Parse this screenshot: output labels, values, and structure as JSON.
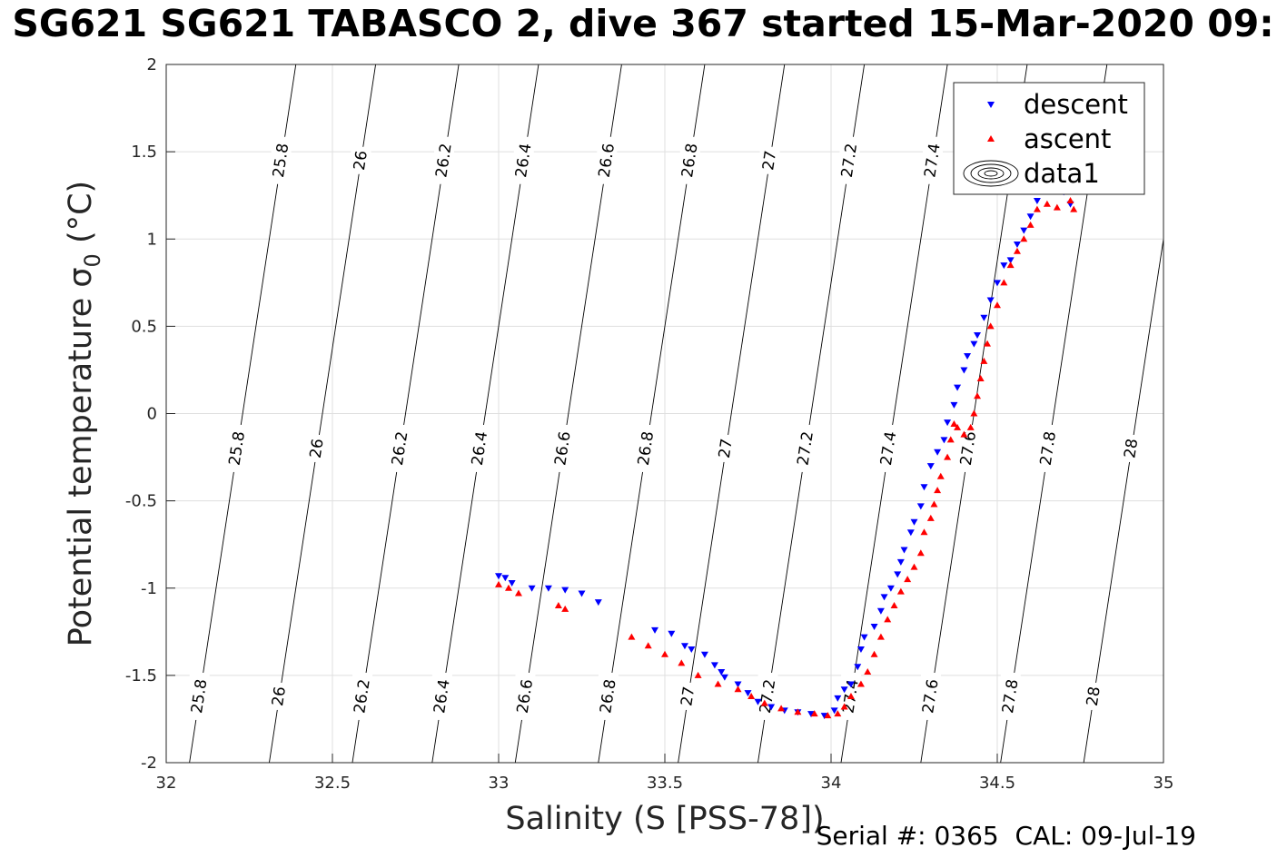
{
  "title": "SG621 SG621 TABASCO 2, dive 367 started 15-Mar-2020 09:",
  "footer": "Serial #: 0365  CAL: 09-Jul-19",
  "colors": {
    "descent": "#0000ff",
    "ascent": "#ff0000",
    "grid": "#dfdfdf",
    "contour": "#000000"
  },
  "chart_data": {
    "type": "scatter",
    "xlabel": "Salinity (S [PSS-78])",
    "ylabel": "Potential temperature σ",
    "ylabel_sub": "0",
    "ylabel_unit": " (°C)",
    "xlim": [
      32,
      35
    ],
    "ylim": [
      -2,
      2
    ],
    "grid": true,
    "legend_position": "top-right",
    "xticks": [
      "32",
      "32.5",
      "33",
      "33.5",
      "34",
      "34.5",
      "35"
    ],
    "yticks": [
      "-2",
      "-1.5",
      "-1",
      "-0.5",
      "0",
      "0.5",
      "1",
      "1.5",
      "2"
    ],
    "legend": [
      "descent",
      "ascent",
      "data1"
    ],
    "density_contours": {
      "levels": [
        "25.8",
        "26",
        "26.2",
        "26.4",
        "26.6",
        "26.8",
        "27",
        "27.2",
        "27.4",
        "27.6",
        "27.8",
        "28"
      ],
      "lines": [
        {
          "label": "25.8",
          "s_bottom": 32.07,
          "s_top": 32.39
        },
        {
          "label": "26",
          "s_bottom": 32.31,
          "s_top": 32.63
        },
        {
          "label": "26.2",
          "s_bottom": 32.56,
          "s_top": 32.88
        },
        {
          "label": "26.4",
          "s_bottom": 32.8,
          "s_top": 33.12
        },
        {
          "label": "26.6",
          "s_bottom": 33.05,
          "s_top": 33.37
        },
        {
          "label": "26.8",
          "s_bottom": 33.3,
          "s_top": 33.62
        },
        {
          "label": "27",
          "s_bottom": 33.54,
          "s_top": 33.86
        },
        {
          "label": "27.2",
          "s_bottom": 33.78,
          "s_top": 34.1
        },
        {
          "label": "27.4",
          "s_bottom": 34.03,
          "s_top": 34.35
        },
        {
          "label": "27.6",
          "s_bottom": 34.27,
          "s_top": 34.59
        },
        {
          "label": "27.8",
          "s_bottom": 34.51,
          "s_top": 34.83
        },
        {
          "label": "28",
          "s_bottom": 34.76,
          "s_top": 35.08
        }
      ]
    },
    "series": [
      {
        "name": "descent",
        "marker": "triangle-down",
        "points": [
          [
            33.0,
            -0.93
          ],
          [
            33.02,
            -0.94
          ],
          [
            33.04,
            -0.97
          ],
          [
            33.1,
            -1.0
          ],
          [
            33.15,
            -1.0
          ],
          [
            33.2,
            -1.01
          ],
          [
            33.25,
            -1.03
          ],
          [
            33.3,
            -1.08
          ],
          [
            33.47,
            -1.24
          ],
          [
            33.52,
            -1.26
          ],
          [
            33.56,
            -1.33
          ],
          [
            33.58,
            -1.35
          ],
          [
            33.62,
            -1.38
          ],
          [
            33.65,
            -1.44
          ],
          [
            33.67,
            -1.48
          ],
          [
            33.68,
            -1.51
          ],
          [
            33.72,
            -1.55
          ],
          [
            33.75,
            -1.6
          ],
          [
            33.78,
            -1.65
          ],
          [
            33.82,
            -1.68
          ],
          [
            33.86,
            -1.7
          ],
          [
            33.9,
            -1.71
          ],
          [
            33.94,
            -1.72
          ],
          [
            33.98,
            -1.73
          ],
          [
            34.01,
            -1.7
          ],
          [
            34.02,
            -1.63
          ],
          [
            34.04,
            -1.58
          ],
          [
            34.06,
            -1.55
          ],
          [
            34.08,
            -1.45
          ],
          [
            34.09,
            -1.35
          ],
          [
            34.1,
            -1.28
          ],
          [
            34.13,
            -1.22
          ],
          [
            34.15,
            -1.13
          ],
          [
            34.16,
            -1.05
          ],
          [
            34.18,
            -1.0
          ],
          [
            34.2,
            -0.92
          ],
          [
            34.21,
            -0.85
          ],
          [
            34.22,
            -0.78
          ],
          [
            34.24,
            -0.68
          ],
          [
            34.25,
            -0.62
          ],
          [
            34.27,
            -0.53
          ],
          [
            34.28,
            -0.42
          ],
          [
            34.3,
            -0.3
          ],
          [
            34.32,
            -0.22
          ],
          [
            34.34,
            -0.15
          ],
          [
            34.35,
            -0.05
          ],
          [
            34.37,
            0.05
          ],
          [
            34.38,
            0.15
          ],
          [
            34.4,
            0.25
          ],
          [
            34.41,
            0.33
          ],
          [
            34.43,
            0.4
          ],
          [
            34.44,
            0.45
          ],
          [
            34.46,
            0.55
          ],
          [
            34.48,
            0.65
          ],
          [
            34.5,
            0.75
          ],
          [
            34.52,
            0.85
          ],
          [
            34.54,
            0.88
          ],
          [
            34.56,
            0.97
          ],
          [
            34.58,
            1.05
          ],
          [
            34.6,
            1.13
          ],
          [
            34.62,
            1.22
          ],
          [
            34.64,
            1.3
          ],
          [
            34.66,
            1.35
          ],
          [
            34.7,
            1.27
          ],
          [
            34.72,
            1.2
          ]
        ]
      },
      {
        "name": "ascent",
        "marker": "triangle-up",
        "points": [
          [
            33.0,
            -0.98
          ],
          [
            33.03,
            -1.0
          ],
          [
            33.06,
            -1.03
          ],
          [
            33.18,
            -1.1
          ],
          [
            33.2,
            -1.12
          ],
          [
            33.4,
            -1.28
          ],
          [
            33.45,
            -1.33
          ],
          [
            33.5,
            -1.38
          ],
          [
            33.55,
            -1.43
          ],
          [
            33.6,
            -1.5
          ],
          [
            33.66,
            -1.55
          ],
          [
            33.72,
            -1.58
          ],
          [
            33.76,
            -1.62
          ],
          [
            33.8,
            -1.66
          ],
          [
            33.85,
            -1.69
          ],
          [
            33.9,
            -1.71
          ],
          [
            33.95,
            -1.72
          ],
          [
            33.99,
            -1.73
          ],
          [
            34.02,
            -1.72
          ],
          [
            34.04,
            -1.68
          ],
          [
            34.06,
            -1.62
          ],
          [
            34.09,
            -1.55
          ],
          [
            34.11,
            -1.48
          ],
          [
            34.13,
            -1.38
          ],
          [
            34.15,
            -1.28
          ],
          [
            34.17,
            -1.18
          ],
          [
            34.19,
            -1.1
          ],
          [
            34.21,
            -1.02
          ],
          [
            34.23,
            -0.95
          ],
          [
            34.25,
            -0.88
          ],
          [
            34.27,
            -0.8
          ],
          [
            34.28,
            -0.68
          ],
          [
            34.3,
            -0.6
          ],
          [
            34.31,
            -0.52
          ],
          [
            34.32,
            -0.44
          ],
          [
            34.33,
            -0.36
          ],
          [
            34.35,
            -0.25
          ],
          [
            34.36,
            -0.15
          ],
          [
            34.37,
            -0.06
          ],
          [
            34.38,
            -0.08
          ],
          [
            34.4,
            -0.12
          ],
          [
            34.42,
            -0.08
          ],
          [
            34.43,
            0.0
          ],
          [
            34.44,
            0.1
          ],
          [
            34.45,
            0.2
          ],
          [
            34.46,
            0.3
          ],
          [
            34.47,
            0.4
          ],
          [
            34.48,
            0.5
          ],
          [
            34.5,
            0.62
          ],
          [
            34.52,
            0.75
          ],
          [
            34.54,
            0.85
          ],
          [
            34.56,
            0.93
          ],
          [
            34.58,
            1.0
          ],
          [
            34.6,
            1.08
          ],
          [
            34.62,
            1.17
          ],
          [
            34.65,
            1.2
          ],
          [
            34.68,
            1.18
          ],
          [
            34.72,
            1.22
          ],
          [
            34.73,
            1.17
          ]
        ]
      }
    ]
  }
}
